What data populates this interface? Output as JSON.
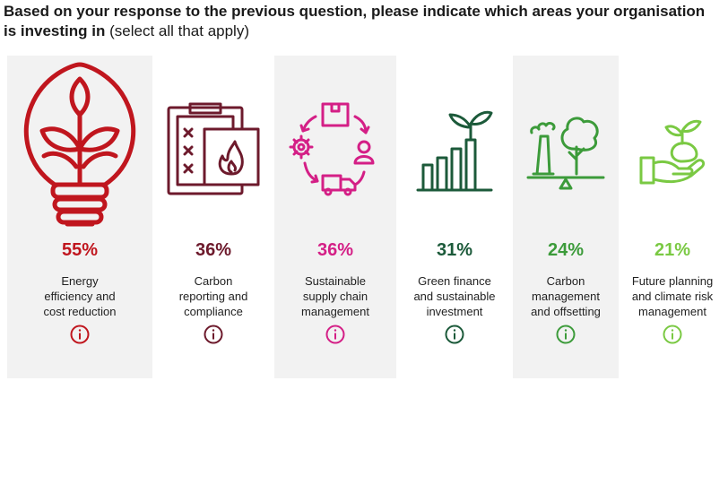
{
  "question": {
    "strong": "Based on your response to the previous question, please indicate which areas your organisation is investing in",
    "note": "(select all that apply)"
  },
  "colors": {
    "energy": "#c0161e",
    "carbon_reporting": "#6d1a2c",
    "supply_chain": "#d41f86",
    "green_finance": "#1c5a3a",
    "carbon_management": "#3c9b3a",
    "climate_risk": "#7ac943",
    "card_shade": "#f2f2f2"
  },
  "chart_data": {
    "type": "bar",
    "categories": [
      "Energy efficiency and cost reduction",
      "Carbon reporting and compliance",
      "Sustainable supply chain management",
      "Green finance and sustainable investment",
      "Carbon management and offsetting",
      "Future planning and climate risk management"
    ],
    "values": [
      55,
      36,
      36,
      31,
      24,
      21
    ],
    "unit": "%"
  },
  "items": [
    {
      "pct": "55%",
      "line1": "Energy",
      "line2": "efficiency and",
      "line3": "cost reduction",
      "icon": "lightbulb-plant-icon"
    },
    {
      "pct": "36%",
      "line1": "Carbon",
      "line2": "reporting and",
      "line3": "compliance",
      "icon": "clipboard-fire-icon"
    },
    {
      "pct": "36%",
      "line1": "Sustainable",
      "line2": "supply chain",
      "line3": "management",
      "icon": "supply-cycle-icon"
    },
    {
      "pct": "31%",
      "line1": "Green finance",
      "line2": "and sustainable",
      "line3": "investment",
      "icon": "growth-bars-icon"
    },
    {
      "pct": "24%",
      "line1": "Carbon",
      "line2": "management",
      "line3": "and offsetting",
      "icon": "factory-tree-scale-icon"
    },
    {
      "pct": "21%",
      "line1": "Future planning",
      "line2": "and climate risk",
      "line3": "management",
      "icon": "hand-plant-icon"
    }
  ]
}
